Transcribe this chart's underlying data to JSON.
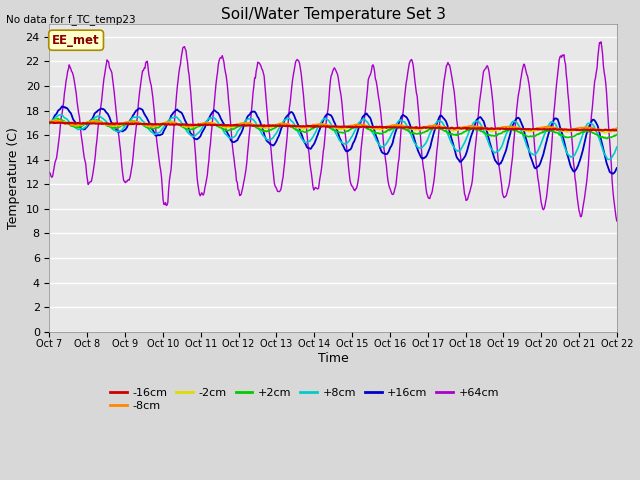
{
  "title": "Soil/Water Temperature Set 3",
  "xlabel": "Time",
  "ylabel": "Temperature (C)",
  "note": "No data for f_TC_temp23",
  "annotation": "EE_met",
  "ylim": [
    0,
    25
  ],
  "yticks": [
    0,
    2,
    4,
    6,
    8,
    10,
    12,
    14,
    16,
    18,
    20,
    22,
    24
  ],
  "bg_color": "#e8e8e8",
  "series_colors": {
    "-16cm": "#cc0000",
    "-8cm": "#ff8800",
    "-2cm": "#dddd00",
    "+2cm": "#00cc00",
    "+8cm": "#00cccc",
    "+16cm": "#0000cc",
    "+64cm": "#aa00cc"
  },
  "n_days": 15,
  "start_day": 7,
  "figsize": [
    6.4,
    4.8
  ],
  "dpi": 100
}
